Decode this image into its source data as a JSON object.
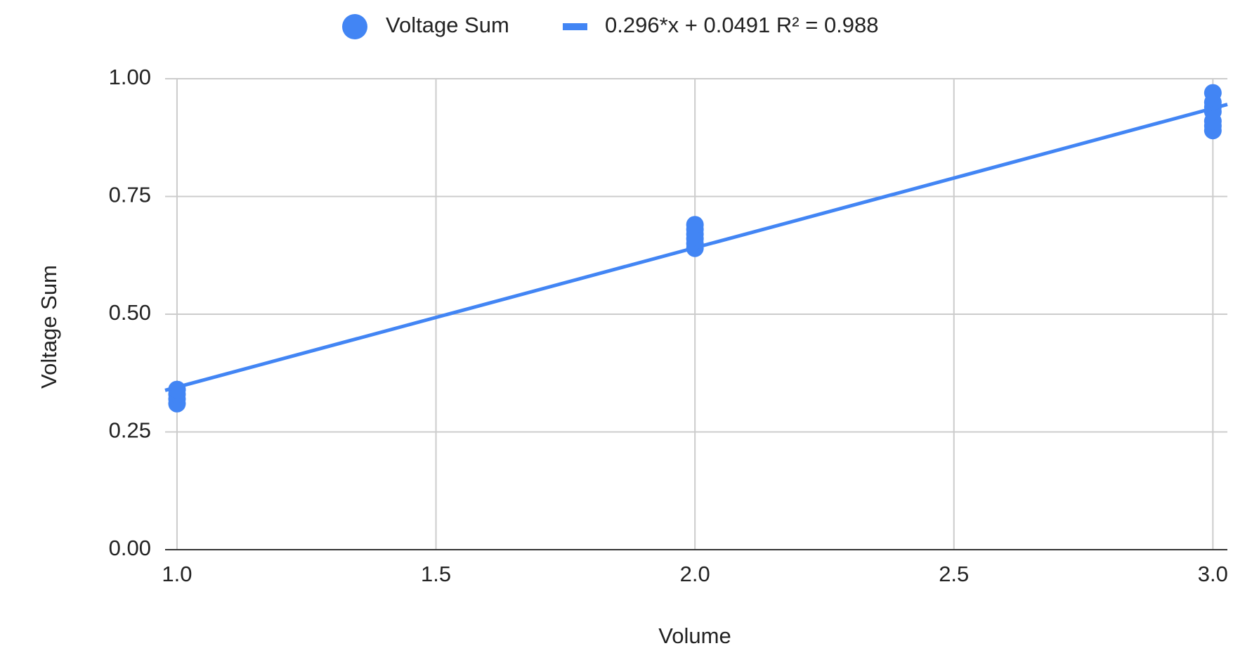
{
  "chart_data": {
    "type": "scatter",
    "x_label": "Volume",
    "y_label": "Voltage Sum",
    "series": [
      {
        "name": "Voltage Sum",
        "color": "#4285f4",
        "x": [
          1,
          1,
          1,
          1,
          1,
          2,
          2,
          2,
          2,
          2,
          2,
          3,
          3,
          3,
          3,
          3,
          3,
          3
        ],
        "values": [
          0.31,
          0.32,
          0.33,
          0.34,
          0.34,
          0.64,
          0.65,
          0.66,
          0.67,
          0.68,
          0.69,
          0.89,
          0.9,
          0.91,
          0.93,
          0.94,
          0.95,
          0.97
        ]
      }
    ],
    "trendline": {
      "name": "0.296*x + 0.0491 R² = 0.988",
      "slope": 0.296,
      "intercept": 0.0491,
      "color": "#4285f4"
    },
    "xlim": [
      0.977,
      3.028
    ],
    "xticks": [
      {
        "value": 1,
        "label": "1.0"
      },
      1.5,
      {
        "value": 2,
        "label": "2.0"
      },
      2.5,
      {
        "value": 3,
        "label": "3.0"
      }
    ],
    "ylim": [
      0,
      1
    ],
    "yticks": [
      {
        "value": 0,
        "label": "0.00"
      },
      {
        "value": 0.25,
        "label": "0.25"
      },
      {
        "value": 0.5,
        "label": "0.50"
      },
      {
        "value": 0.75,
        "label": "0.75"
      },
      {
        "value": 1,
        "label": "1.00"
      }
    ],
    "grid": true
  }
}
